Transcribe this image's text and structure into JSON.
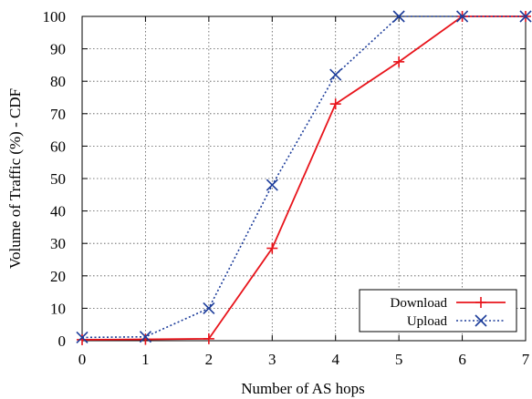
{
  "chart_data": {
    "type": "line",
    "xlabel": "Number of AS hops",
    "ylabel": "Volume of Traffic (%) - CDF",
    "xlim": [
      0,
      7
    ],
    "ylim": [
      0,
      100
    ],
    "x_ticks": [
      "0",
      "1",
      "2",
      "3",
      "4",
      "5",
      "6",
      "7"
    ],
    "y_ticks": [
      "0",
      "10",
      "20",
      "30",
      "40",
      "50",
      "60",
      "70",
      "80",
      "90",
      "100"
    ],
    "grid": true,
    "legend_position": "bottom-right",
    "series": [
      {
        "name": "Download",
        "color": "#e8141b",
        "line_style": "solid",
        "marker": "plus",
        "x": [
          0,
          1,
          2,
          3,
          4,
          5,
          6,
          7
        ],
        "values": [
          0.3,
          0.4,
          0.6,
          28.5,
          73,
          86,
          100,
          100
        ]
      },
      {
        "name": "Upload",
        "color": "#1c3c9a",
        "line_style": "dotted",
        "marker": "cross",
        "x": [
          0,
          1,
          2,
          3,
          4,
          5,
          6,
          7
        ],
        "values": [
          1,
          1.2,
          10,
          48,
          82,
          100,
          100,
          100
        ]
      }
    ]
  }
}
